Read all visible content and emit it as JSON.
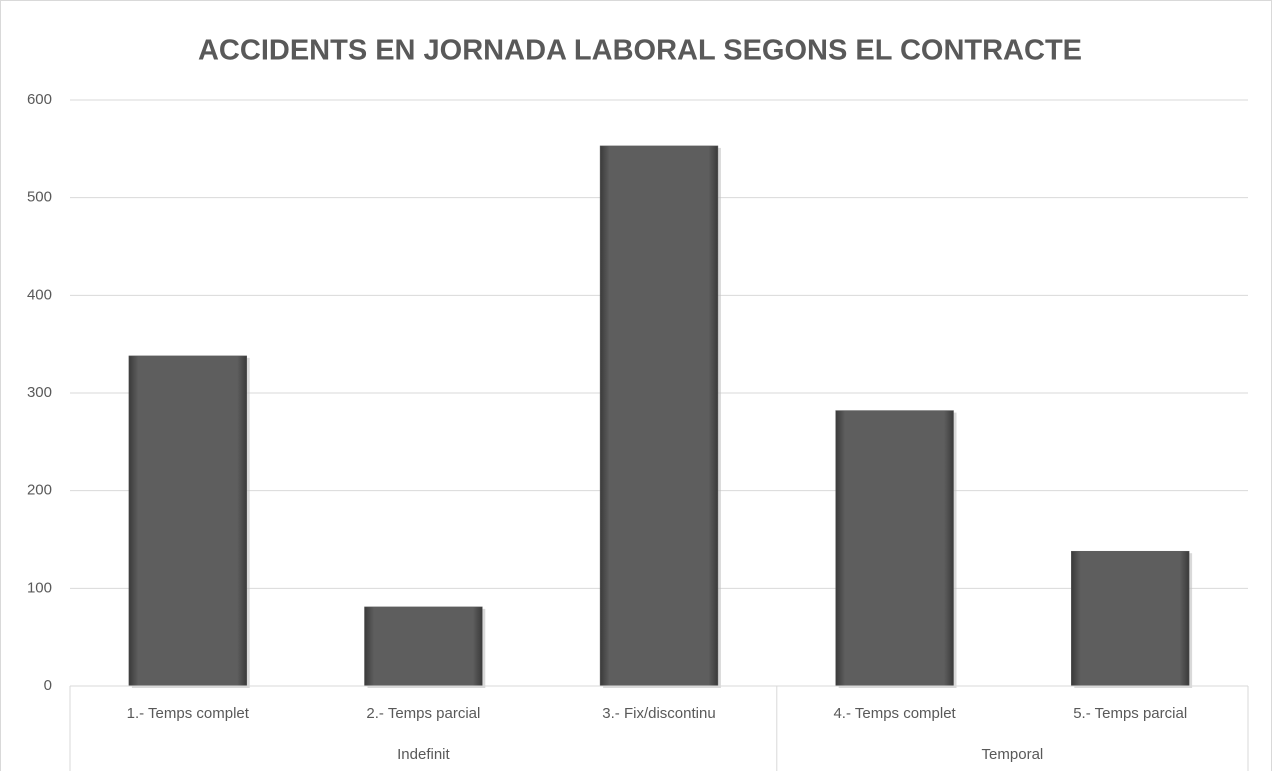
{
  "chart_data": {
    "type": "bar",
    "title": "ACCIDENTS EN JORNADA LABORAL SEGONS EL CONTRACTE",
    "groups": [
      {
        "name": "Indefinit",
        "categories": [
          "1.- Temps complet",
          "2.- Temps parcial",
          "3.- Fix/discontinu"
        ],
        "values": [
          338,
          81,
          553
        ]
      },
      {
        "name": "Temporal",
        "categories": [
          "4.- Temps complet",
          "5.- Temps parcial"
        ],
        "values": [
          282,
          138
        ]
      }
    ],
    "color": "#595959",
    "ylim": [
      0,
      600
    ],
    "yticks": [
      0,
      100,
      200,
      300,
      400,
      500,
      600
    ],
    "grid": true
  }
}
